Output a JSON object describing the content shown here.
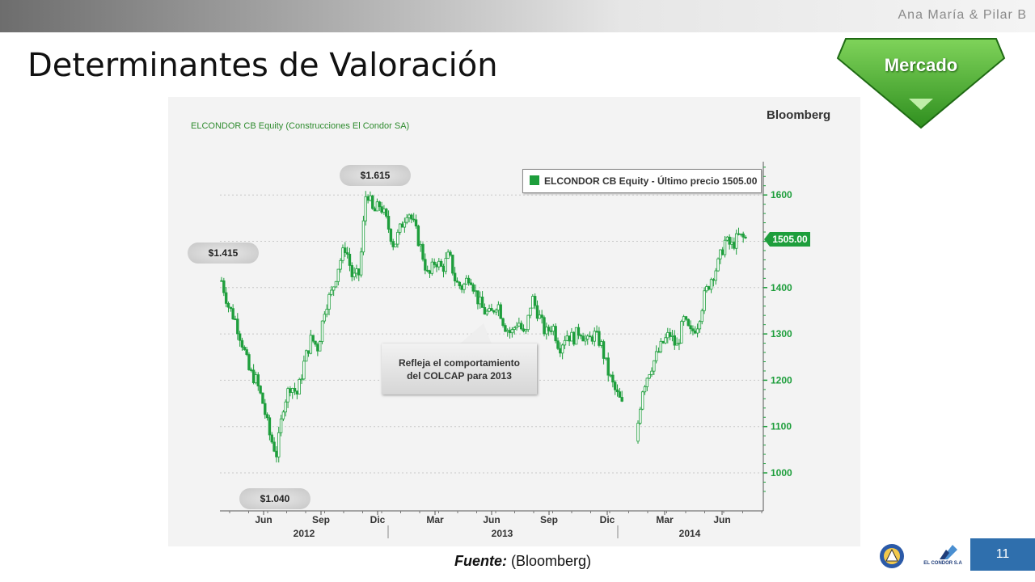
{
  "header": {
    "authors": "Ana María & Pilar B",
    "title": "Determinantes de Valoración",
    "badge_label": "Mercado"
  },
  "chart_panel": {
    "brand": "Bloomberg",
    "legend_label": "ELCONDOR CB Equity - Último precio 1505.00",
    "last_price_tag": "1505.00",
    "callouts": {
      "max": "$1.615",
      "start": "$1.415",
      "min": "$1.040",
      "note_line1": "Refleja el comportamiento",
      "note_line2": "del COLCAP para 2013"
    }
  },
  "chart_data": {
    "type": "candlestick",
    "title": "ELCONDOR CB Equity (Construcciones El Condor SA)",
    "ylim": [
      920,
      1680
    ],
    "y_ticks": [
      1000,
      1100,
      1200,
      1300,
      1400,
      1500,
      1600
    ],
    "y_tick_labels": [
      "1000",
      "1100",
      "1200",
      "1300",
      "1400",
      "1500",
      "1600"
    ],
    "gridlines": [
      1000,
      1100,
      1200,
      1300,
      1400,
      1500,
      1600
    ],
    "x_months": [
      "Jun",
      "Sep",
      "Dic",
      "Mar",
      "Jun",
      "Sep",
      "Dic",
      "Mar",
      "Jun"
    ],
    "x_years": [
      "2012",
      "2013",
      "2014"
    ],
    "series_color": "#1e9e3c",
    "price_path": [
      {
        "t": 0,
        "p": 1415
      },
      {
        "t": 1,
        "p": 1360
      },
      {
        "t": 2,
        "p": 1330
      },
      {
        "t": 3,
        "p": 1280
      },
      {
        "t": 4,
        "p": 1220
      },
      {
        "t": 5,
        "p": 1200
      },
      {
        "t": 6,
        "p": 1150
      },
      {
        "t": 7,
        "p": 1080
      },
      {
        "t": 8,
        "p": 1040
      },
      {
        "t": 9,
        "p": 1150
      },
      {
        "t": 10,
        "p": 1190
      },
      {
        "t": 11,
        "p": 1170
      },
      {
        "t": 12,
        "p": 1240
      },
      {
        "t": 13,
        "p": 1290
      },
      {
        "t": 14,
        "p": 1270
      },
      {
        "t": 15,
        "p": 1360
      },
      {
        "t": 16,
        "p": 1390
      },
      {
        "t": 17,
        "p": 1450
      },
      {
        "t": 18,
        "p": 1490
      },
      {
        "t": 19,
        "p": 1420
      },
      {
        "t": 20,
        "p": 1430
      },
      {
        "t": 21,
        "p": 1615
      },
      {
        "t": 22,
        "p": 1560
      },
      {
        "t": 23,
        "p": 1580
      },
      {
        "t": 24,
        "p": 1540
      },
      {
        "t": 25,
        "p": 1490
      },
      {
        "t": 26,
        "p": 1530
      },
      {
        "t": 27,
        "p": 1570
      },
      {
        "t": 28,
        "p": 1530
      },
      {
        "t": 29,
        "p": 1480
      },
      {
        "t": 30,
        "p": 1420
      },
      {
        "t": 31,
        "p": 1460
      },
      {
        "t": 32,
        "p": 1440
      },
      {
        "t": 33,
        "p": 1470
      },
      {
        "t": 34,
        "p": 1410
      },
      {
        "t": 35,
        "p": 1400
      },
      {
        "t": 36,
        "p": 1430
      },
      {
        "t": 37,
        "p": 1380
      },
      {
        "t": 38,
        "p": 1350
      },
      {
        "t": 39,
        "p": 1340
      },
      {
        "t": 40,
        "p": 1370
      },
      {
        "t": 41,
        "p": 1320
      },
      {
        "t": 42,
        "p": 1300
      },
      {
        "t": 43,
        "p": 1330
      },
      {
        "t": 44,
        "p": 1290
      },
      {
        "t": 45,
        "p": 1380
      },
      {
        "t": 46,
        "p": 1340
      },
      {
        "t": 47,
        "p": 1300
      },
      {
        "t": 48,
        "p": 1320
      },
      {
        "t": 49,
        "p": 1270
      },
      {
        "t": 50,
        "p": 1300
      },
      {
        "t": 51,
        "p": 1290
      },
      {
        "t": 52,
        "p": 1310
      },
      {
        "t": 53,
        "p": 1280
      },
      {
        "t": 54,
        "p": 1300
      },
      {
        "t": 55,
        "p": 1280
      },
      {
        "t": 56,
        "p": 1220
      },
      {
        "t": 57,
        "p": 1180
      },
      {
        "t": 58,
        "p": 1150
      },
      {
        "t": 59,
        "p": 1100
      },
      {
        "t": 60,
        "p": 1060
      },
      {
        "t": 61,
        "p": 1180
      },
      {
        "t": 62,
        "p": 1220
      },
      {
        "t": 63,
        "p": 1250
      },
      {
        "t": 64,
        "p": 1280
      },
      {
        "t": 65,
        "p": 1300
      },
      {
        "t": 66,
        "p": 1270
      },
      {
        "t": 67,
        "p": 1330
      },
      {
        "t": 68,
        "p": 1300
      },
      {
        "t": 69,
        "p": 1320
      },
      {
        "t": 70,
        "p": 1380
      },
      {
        "t": 71,
        "p": 1420
      },
      {
        "t": 72,
        "p": 1450
      },
      {
        "t": 73,
        "p": 1500
      },
      {
        "t": 74,
        "p": 1490
      },
      {
        "t": 75,
        "p": 1510
      },
      {
        "t": 76,
        "p": 1505
      }
    ],
    "key_points": {
      "start": 1415,
      "max": 1615,
      "min": 1040,
      "last": 1505
    }
  },
  "footer": {
    "source_label": "Fuente:",
    "source_value": "(Bloomberg)",
    "page_number": "11",
    "company_logo_text": "EL CONDOR S.A"
  },
  "colors": {
    "accent_green": "#1e9e3c",
    "page_number_bg": "#2f6fad"
  }
}
